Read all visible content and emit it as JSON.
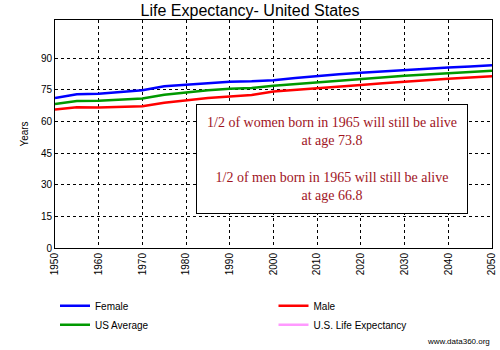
{
  "chart_data": {
    "type": "line",
    "title": "Life Expectancy- United States",
    "y_label": "Years",
    "x": [
      1950,
      1955,
      1960,
      1965,
      1970,
      1975,
      1980,
      1985,
      1990,
      1995,
      2000,
      2005,
      2010,
      2015,
      2020,
      2025,
      2030,
      2035,
      2040,
      2045,
      2050
    ],
    "series": [
      {
        "name": "Female",
        "color": "#0000ff",
        "values": [
          71,
          72.8,
          73.1,
          73.8,
          74.7,
          76.6,
          77.4,
          78.2,
          78.8,
          79,
          79.5,
          80.5,
          81.5,
          82.3,
          83,
          83.7,
          84.3,
          84.9,
          85.5,
          86,
          86.6
        ]
      },
      {
        "name": "Male",
        "color": "#ff0000",
        "values": [
          65.6,
          66.7,
          66.6,
          66.8,
          67.1,
          68.8,
          70,
          71.1,
          71.8,
          72.5,
          74.1,
          74.8,
          75.6,
          76.4,
          77.2,
          78,
          78.8,
          79.5,
          80.2,
          80.8,
          81.4
        ]
      },
      {
        "name": "US Average",
        "color": "#009900",
        "values": [
          68.2,
          69.6,
          69.7,
          70.2,
          70.8,
          72.6,
          73.7,
          74.7,
          75.4,
          75.8,
          76.9,
          77.7,
          78.6,
          79.4,
          80.1,
          80.9,
          81.6,
          82.2,
          82.9,
          83.4,
          84
        ]
      },
      {
        "name": "U.S. Life Expectancy",
        "color": "#ff99ff",
        "values": [
          null,
          null,
          null,
          null,
          null,
          null,
          null,
          null,
          null,
          null,
          null,
          null,
          null,
          null,
          null,
          null,
          null,
          null,
          null,
          null,
          null
        ]
      }
    ],
    "xlim": [
      1950,
      2050
    ],
    "xticks": [
      1950,
      1960,
      1970,
      1980,
      1990,
      2000,
      2010,
      2020,
      2030,
      2040,
      2050
    ],
    "ylim": [
      0,
      108
    ],
    "yticks": [
      0,
      15,
      30,
      45,
      60,
      75,
      90
    ],
    "grid": true,
    "legend": "bottom",
    "annotations": [
      [
        "1/2 of women born in 1965 will still be alive",
        "at age 73.8"
      ],
      [
        "1/2 of men born in 1965 will still be alive",
        "at age 66.8"
      ]
    ],
    "source": "www.data360.org"
  }
}
